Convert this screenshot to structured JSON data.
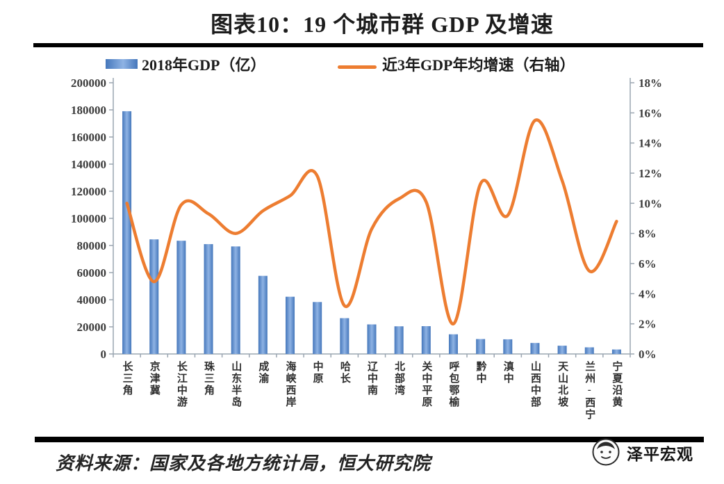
{
  "title": "图表10：19 个城市群 GDP 及增速",
  "legend": {
    "bar_label": "2018年GDP（亿）",
    "line_label": "近3年GDP年均增速（右轴）"
  },
  "footer": {
    "source": "资料来源：国家及各地方统计局，恒大研究院",
    "brand": "泽平宏观"
  },
  "colors": {
    "bar_edge": "#4577bb",
    "bar_mid": "#8fb3e4",
    "line": "#ed7d31",
    "axis": "#9aa5b1",
    "tick_text": "#3b3b3b",
    "divider": "#000000"
  },
  "chart_data": {
    "type": "bar+line",
    "title": "图表10：19 个城市群 GDP 及增速",
    "grid": false,
    "legend_position": "top",
    "categories": [
      "长三角",
      "京津冀",
      "长江中游",
      "珠三角",
      "山东半岛",
      "成渝",
      "海峡西岸",
      "中原",
      "哈长",
      "辽中南",
      "北部湾",
      "关中平原",
      "呼包鄂榆",
      "黔中",
      "滇中",
      "山西中部",
      "天山北坡",
      "兰州-西宁",
      "宁夏沿黄"
    ],
    "series": [
      {
        "name": "2018年GDP（亿）",
        "type": "bar",
        "axis": "left",
        "values": [
          179000,
          84500,
          83500,
          81000,
          79300,
          57600,
          42200,
          38300,
          26400,
          21800,
          20400,
          20500,
          14500,
          11000,
          10800,
          8100,
          6100,
          4900,
          3300
        ]
      },
      {
        "name": "近3年GDP年均增速（右轴）",
        "type": "line",
        "axis": "right",
        "values": [
          10.0,
          4.8,
          9.9,
          9.3,
          8.0,
          9.5,
          10.5,
          11.8,
          3.2,
          8.3,
          10.3,
          10.1,
          2.0,
          11.3,
          9.2,
          15.5,
          11.5,
          5.5,
          8.8
        ]
      }
    ],
    "left_axis": {
      "min": 0,
      "max": 200000,
      "step": 20000,
      "tick_labels": [
        "0",
        "20000",
        "40000",
        "60000",
        "80000",
        "100000",
        "120000",
        "140000",
        "160000",
        "180000",
        "200000"
      ]
    },
    "right_axis": {
      "min": 0,
      "max": 18,
      "step": 2,
      "tick_labels": [
        "0%",
        "2%",
        "4%",
        "6%",
        "8%",
        "10%",
        "12%",
        "14%",
        "16%",
        "18%"
      ]
    }
  }
}
